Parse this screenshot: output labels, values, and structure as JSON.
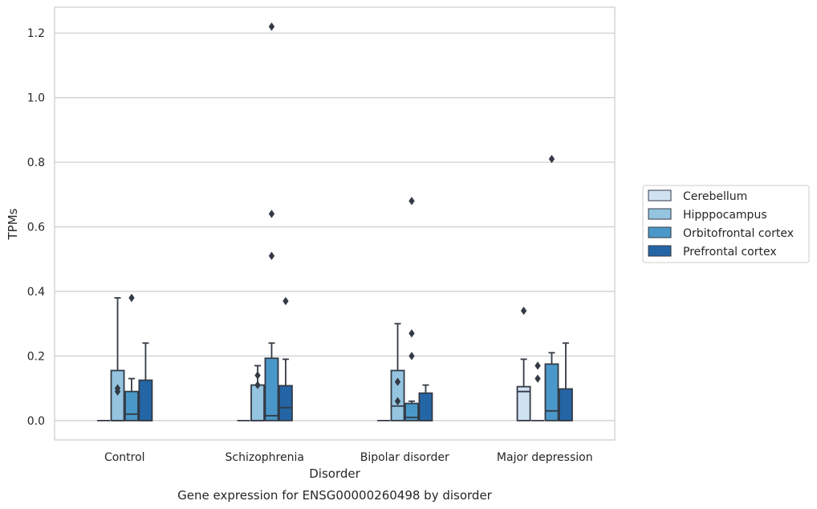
{
  "chart_data": {
    "type": "box",
    "title": "",
    "caption": "Gene expression for ENSG00000260498 by disorder",
    "xlabel": "Disorder",
    "ylabel": "TPMs",
    "ylim": [
      -0.06,
      1.28
    ],
    "yticks": [
      0.0,
      0.2,
      0.4,
      0.6,
      0.8,
      1.0,
      1.2
    ],
    "ytick_labels": [
      "0.0",
      "0.2",
      "0.4",
      "0.6",
      "0.8",
      "1.0",
      "1.2"
    ],
    "grid": "horizontal",
    "legend_placement": "center-right outside",
    "categories": [
      "Control",
      "Schizophrenia",
      "Bipolar disorder",
      "Major depression"
    ],
    "series": [
      {
        "name": "Cerebellum",
        "color": "#d0e1f2",
        "boxes": [
          {
            "min": 0.0,
            "q1": 0.0,
            "median": 0.0,
            "q3": 0.0,
            "max": 0.0,
            "outliers": []
          },
          {
            "min": 0.0,
            "q1": 0.0,
            "median": 0.0,
            "q3": 0.0,
            "max": 0.0,
            "outliers": []
          },
          {
            "min": 0.0,
            "q1": 0.0,
            "median": 0.0,
            "q3": 0.0,
            "max": 0.0,
            "outliers": []
          },
          {
            "min": 0.0,
            "q1": 0.0,
            "median": 0.09,
            "q3": 0.105,
            "max": 0.19,
            "outliers": [
              0.34
            ]
          }
        ]
      },
      {
        "name": "Hipppocampus",
        "color": "#94c4df",
        "boxes": [
          {
            "min": 0.0,
            "q1": 0.0,
            "median": 0.0,
            "q3": 0.155,
            "max": 0.38,
            "outliers": [
              0.09,
              0.1
            ]
          },
          {
            "min": 0.0,
            "q1": 0.0,
            "median": 0.0,
            "q3": 0.11,
            "max": 0.17,
            "outliers": [
              0.11,
              0.14
            ]
          },
          {
            "min": 0.0,
            "q1": 0.0,
            "median": 0.045,
            "q3": 0.155,
            "max": 0.3,
            "outliers": [
              0.06,
              0.12
            ]
          },
          {
            "min": 0.0,
            "q1": 0.0,
            "median": 0.0,
            "q3": 0.0,
            "max": 0.0,
            "outliers": [
              0.13,
              0.17
            ]
          }
        ]
      },
      {
        "name": "Orbitofrontal cortex",
        "color": "#4a98c9",
        "boxes": [
          {
            "min": 0.0,
            "q1": 0.0,
            "median": 0.02,
            "q3": 0.09,
            "max": 0.13,
            "outliers": [
              0.38
            ]
          },
          {
            "min": 0.0,
            "q1": 0.0,
            "median": 0.015,
            "q3": 0.193,
            "max": 0.24,
            "outliers": [
              0.51,
              0.64,
              1.22
            ]
          },
          {
            "min": 0.0,
            "q1": 0.0,
            "median": 0.01,
            "q3": 0.053,
            "max": 0.06,
            "outliers": [
              0.2,
              0.27,
              0.68
            ]
          },
          {
            "min": 0.0,
            "q1": 0.0,
            "median": 0.03,
            "q3": 0.175,
            "max": 0.21,
            "outliers": [
              0.81
            ]
          }
        ]
      },
      {
        "name": "Prefrontal cortex",
        "color": "#2465a6",
        "boxes": [
          {
            "min": 0.0,
            "q1": 0.0,
            "median": 0.0,
            "q3": 0.125,
            "max": 0.24,
            "outliers": []
          },
          {
            "min": 0.0,
            "q1": 0.0,
            "median": 0.04,
            "q3": 0.108,
            "max": 0.19,
            "outliers": [
              0.37
            ]
          },
          {
            "min": 0.0,
            "q1": 0.0,
            "median": 0.0,
            "q3": 0.085,
            "max": 0.11,
            "outliers": []
          },
          {
            "min": 0.0,
            "q1": 0.0,
            "median": 0.0,
            "q3": 0.098,
            "max": 0.24,
            "outliers": []
          }
        ]
      }
    ]
  }
}
